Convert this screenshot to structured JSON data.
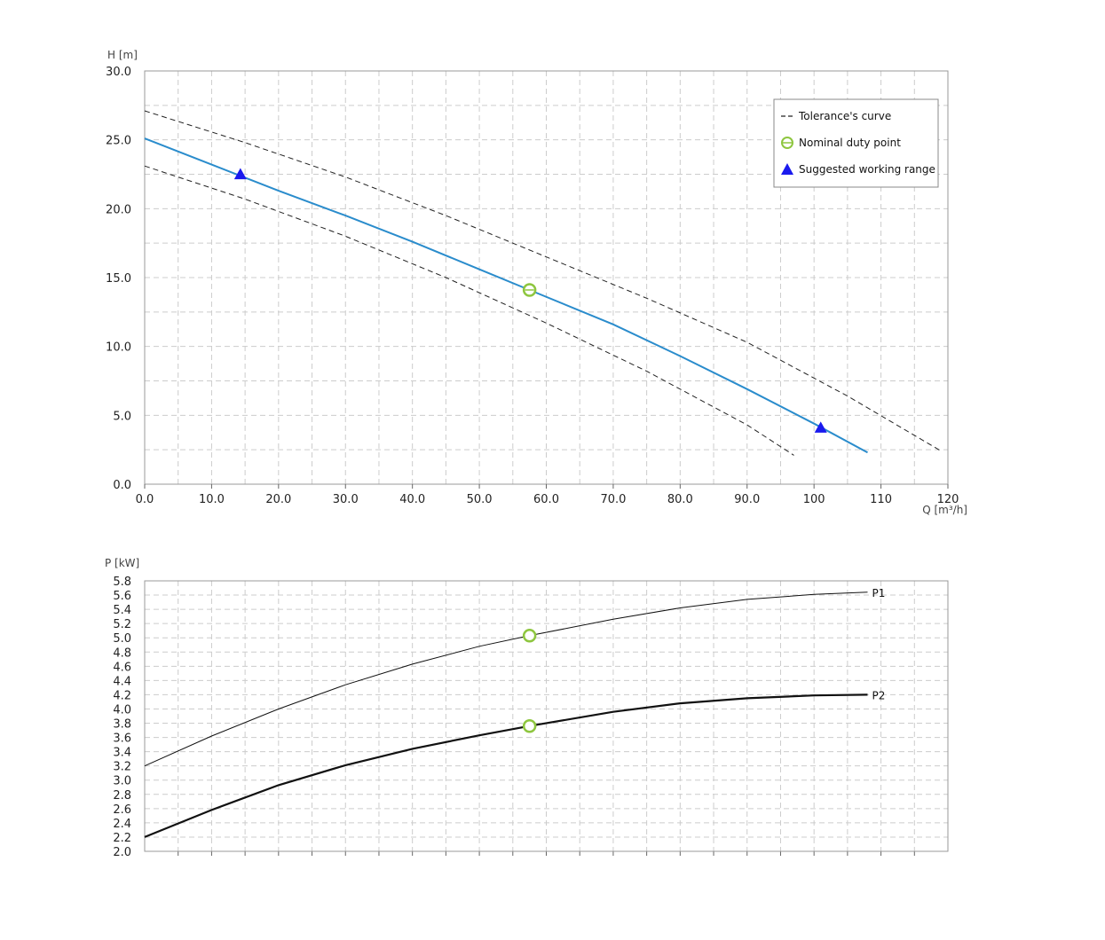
{
  "colors": {
    "head_curve": "#2a8ccc",
    "tolerance": "#222222",
    "duty_point": "#8ec63f",
    "working_range": "#1a1aee",
    "grid": "#cccccc",
    "frame": "#999999"
  },
  "chart_data": [
    {
      "type": "line",
      "ylabel": "H [m]",
      "xlabel": "Q [m³/h]",
      "xlim": [
        0,
        120
      ],
      "ylim": [
        0,
        30
      ],
      "grid": true,
      "legend_position": "top-right",
      "x_ticks": [
        "0.0",
        "10.0",
        "20.0",
        "30.0",
        "40.0",
        "50.0",
        "60.0",
        "70.0",
        "80.0",
        "90.0",
        "100",
        "110",
        "120"
      ],
      "y_ticks": [
        "0.0",
        "5.0",
        "10.0",
        "15.0",
        "20.0",
        "25.0",
        "30.0"
      ],
      "legend": [
        "Tolerance's curve",
        "Nominal duty point",
        "Suggested working range"
      ],
      "series": [
        {
          "x": [
            0,
            10,
            20,
            30,
            40,
            50,
            57.5,
            70,
            80,
            90,
            100,
            108
          ],
          "y": [
            25.1,
            23.2,
            21.3,
            19.5,
            17.6,
            15.6,
            14.1,
            11.6,
            9.3,
            6.9,
            4.4,
            2.3
          ]
        },
        {
          "name": "Tolerance's curve",
          "style": "dashed",
          "x": [
            0,
            15,
            30,
            45,
            60,
            75,
            90,
            105,
            119
          ],
          "y": [
            27.1,
            24.8,
            22.3,
            19.5,
            16.5,
            13.5,
            10.3,
            6.4,
            2.4
          ]
        },
        {
          "name": "Tolerance's curve",
          "style": "dashed",
          "x": [
            0,
            15,
            30,
            45,
            60,
            75,
            90,
            97
          ],
          "y": [
            23.1,
            20.7,
            18.0,
            15.0,
            11.7,
            8.2,
            4.3,
            2.1
          ]
        }
      ],
      "points": [
        {
          "series": "Nominal duty point",
          "marker": "circle",
          "x": 57.5,
          "y": 14.1
        },
        {
          "series": "Suggested working range",
          "marker": "triangle",
          "x": 14.3,
          "y": 22.5
        },
        {
          "series": "Suggested working range",
          "marker": "triangle",
          "x": 101,
          "y": 4.1
        }
      ]
    },
    {
      "type": "line",
      "ylabel": "P [kW]",
      "xlim": [
        0,
        120
      ],
      "ylim": [
        2.0,
        5.8
      ],
      "grid": true,
      "y_ticks": [
        "2.0",
        "2.2",
        "2.4",
        "2.6",
        "2.8",
        "3.0",
        "3.2",
        "3.4",
        "3.6",
        "3.8",
        "4.0",
        "4.2",
        "4.4",
        "4.6",
        "4.8",
        "5.0",
        "5.2",
        "5.4",
        "5.6",
        "5.8"
      ],
      "series": [
        {
          "name": "P1",
          "x": [
            0,
            10,
            20,
            30,
            40,
            50,
            57.5,
            70,
            80,
            90,
            100,
            108
          ],
          "y": [
            3.2,
            3.62,
            4.0,
            4.34,
            4.63,
            4.88,
            5.03,
            5.26,
            5.42,
            5.54,
            5.61,
            5.64
          ]
        },
        {
          "name": "P2",
          "x": [
            0,
            10,
            20,
            30,
            40,
            50,
            57.5,
            70,
            80,
            90,
            100,
            108
          ],
          "y": [
            2.2,
            2.58,
            2.93,
            3.21,
            3.44,
            3.63,
            3.76,
            3.96,
            4.08,
            4.15,
            4.19,
            4.2
          ]
        }
      ],
      "points": [
        {
          "series": "Nominal duty point",
          "marker": "circle",
          "x": 57.5,
          "y": 5.03
        },
        {
          "series": "Nominal duty point",
          "marker": "circle",
          "x": 57.5,
          "y": 3.76
        }
      ]
    }
  ]
}
